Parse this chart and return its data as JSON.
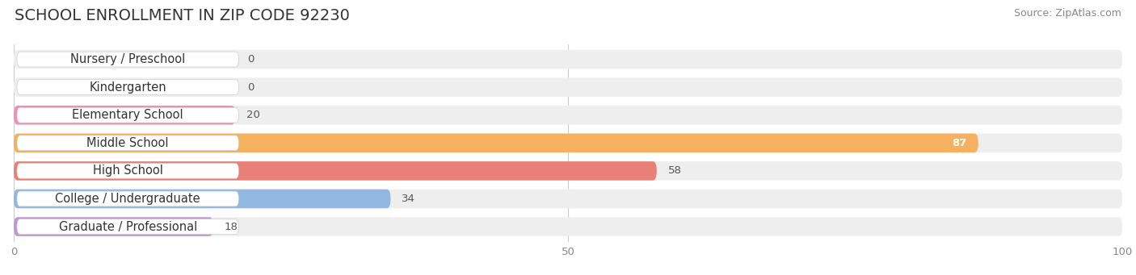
{
  "title": "SCHOOL ENROLLMENT IN ZIP CODE 92230",
  "source": "Source: ZipAtlas.com",
  "categories": [
    "Nursery / Preschool",
    "Kindergarten",
    "Elementary School",
    "Middle School",
    "High School",
    "College / Undergraduate",
    "Graduate / Professional"
  ],
  "values": [
    0,
    0,
    20,
    87,
    58,
    34,
    18
  ],
  "bar_colors": [
    "#6ecfca",
    "#a0a0d8",
    "#f090b0",
    "#f5b060",
    "#e88078",
    "#90b8e0",
    "#c098d0"
  ],
  "bar_bg_colors": [
    "#eeeeee",
    "#eeeeee",
    "#eeeeee",
    "#eeeeee",
    "#eeeeee",
    "#eeeeee",
    "#eeeeee"
  ],
  "xlim": [
    0,
    100
  ],
  "xticks": [
    0,
    50,
    100
  ],
  "title_fontsize": 14,
  "source_fontsize": 9,
  "label_fontsize": 10.5,
  "value_fontsize": 9.5,
  "background_color": "#ffffff",
  "grid_color": "#cccccc",
  "text_color": "#555555"
}
